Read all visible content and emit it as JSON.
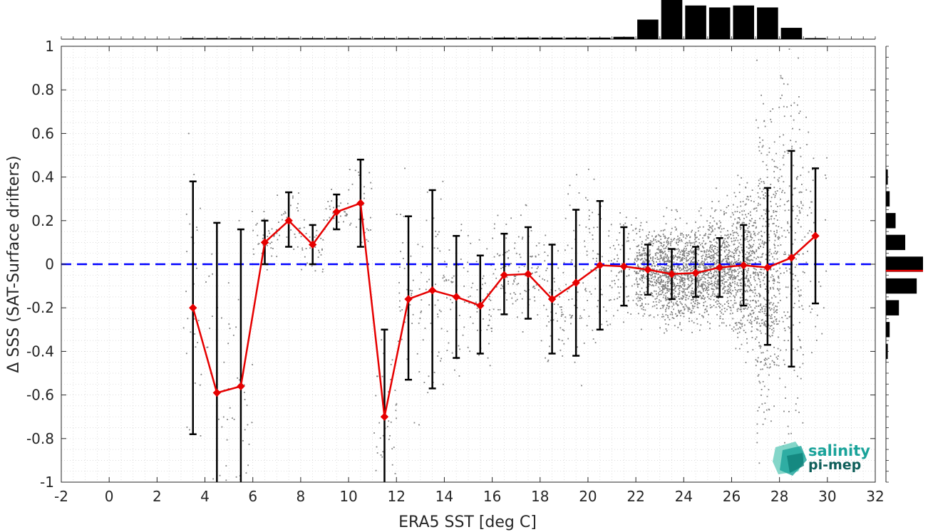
{
  "chart_data": {
    "type": "scatter",
    "xlabel": "ERA5 SST [deg C]",
    "ylabel": "Δ SSS (SAT-Surface drifters)",
    "xlim": [
      -2,
      32
    ],
    "ylim": [
      -1,
      1
    ],
    "xticks": [
      -2,
      0,
      2,
      4,
      6,
      8,
      10,
      12,
      14,
      16,
      18,
      20,
      22,
      24,
      26,
      28,
      30,
      32
    ],
    "yticks": [
      -1,
      -0.8,
      -0.6,
      -0.4,
      -0.2,
      0,
      0.2,
      0.4,
      0.6,
      0.8,
      1
    ],
    "grid": "dotted minor grid",
    "reference_line": {
      "y": 0,
      "color": "#0000ff",
      "style": "dashed"
    },
    "mean_series": {
      "color": "#e60000",
      "x": [
        3.5,
        4.5,
        5.5,
        6.5,
        7.5,
        8.5,
        9.5,
        10.5,
        11.5,
        12.5,
        13.5,
        14.5,
        15.5,
        16.5,
        17.5,
        18.5,
        19.5,
        20.5,
        21.5,
        22.5,
        23.5,
        24.5,
        25.5,
        26.5,
        27.5,
        28.5,
        29.5
      ],
      "mean": [
        -0.2,
        -0.59,
        -0.56,
        0.1,
        0.2,
        0.09,
        0.24,
        0.28,
        -0.7,
        -0.16,
        -0.12,
        -0.15,
        -0.19,
        -0.05,
        -0.045,
        -0.16,
        -0.085,
        -0.005,
        -0.01,
        -0.025,
        -0.045,
        -0.04,
        -0.015,
        -0.005,
        -0.015,
        0.03,
        0.13
      ],
      "upper": [
        0.38,
        0.19,
        0.16,
        0.2,
        0.33,
        0.18,
        0.32,
        0.48,
        -0.3,
        0.22,
        0.34,
        0.13,
        0.04,
        0.14,
        0.17,
        0.09,
        0.25,
        0.29,
        0.17,
        0.09,
        0.07,
        0.08,
        0.12,
        0.18,
        0.35,
        0.52,
        0.44
      ],
      "lower": [
        -0.78,
        -1.0,
        -1.0,
        0.0,
        0.08,
        0.0,
        0.16,
        0.08,
        -1.0,
        -0.53,
        -0.57,
        -0.43,
        -0.41,
        -0.23,
        -0.25,
        -0.41,
        -0.42,
        -0.3,
        -0.19,
        -0.14,
        -0.16,
        -0.15,
        -0.15,
        -0.19,
        -0.37,
        -0.47,
        -0.18
      ]
    },
    "top_histogram": {
      "bin_centers": [
        3.5,
        4.5,
        5.5,
        6.5,
        7.5,
        8.5,
        9.5,
        10.5,
        11.5,
        12.5,
        13.5,
        14.5,
        15.5,
        16.5,
        17.5,
        18.5,
        19.5,
        20.5,
        21.5,
        22.5,
        23.5,
        24.5,
        25.5,
        26.5,
        27.5,
        28.5,
        29.5
      ],
      "relative_counts": [
        0.01,
        0.01,
        0.01,
        0.01,
        0.01,
        0.01,
        0.01,
        0.01,
        0.02,
        0.02,
        0.03,
        0.03,
        0.03,
        0.04,
        0.04,
        0.04,
        0.04,
        0.04,
        0.06,
        0.5,
        1.0,
        0.86,
        0.81,
        0.86,
        0.81,
        0.29,
        0.02
      ]
    },
    "right_histogram": {
      "bin_centers": [
        -0.1,
        0.0,
        0.1,
        0.2,
        0.3,
        -0.2,
        -0.3,
        -0.4,
        0.4
      ],
      "relative_counts": [
        0.83,
        1.0,
        0.52,
        0.26,
        0.1,
        0.35,
        0.1,
        0.05,
        0.05
      ],
      "mean_marker": {
        "y": -0.03,
        "color": "#e60000"
      }
    },
    "scatter_color": "#808080"
  },
  "logo": {
    "line1": "salinity",
    "line2": "pi-mep",
    "color": "#1aa39a"
  }
}
